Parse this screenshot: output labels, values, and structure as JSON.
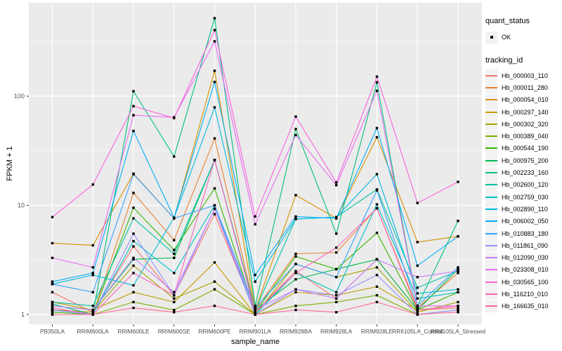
{
  "figure": {
    "background": "#FFFFFF"
  },
  "panel": {
    "background": "#EBEBEB",
    "grid_color": "#FFFFFF",
    "tick_color": "#333333",
    "tick_label_color": "#4D4D4D"
  },
  "axes": {
    "x": {
      "title": "sample_name",
      "categories": [
        "PB350LA",
        "RRIM600LA",
        "RRIM600LE",
        "RRIM600SE",
        "RRIM600PE",
        "RRIM901LA",
        "RRIM928BA",
        "RRIM928LA",
        "RRIM928LE",
        "RRII105LA_Control",
        "RRII105LA_Stressed"
      ]
    },
    "y": {
      "title": "FPKM + 1",
      "scale": "log10",
      "tick_labels": [
        "100",
        "10",
        "1"
      ],
      "tick_values": [
        100,
        10,
        1
      ]
    }
  },
  "legend": {
    "quant_status": {
      "title": "quant_status",
      "items": [
        {
          "label": "OK",
          "marker": "black-square-point"
        }
      ]
    },
    "tracking_id": {
      "title": "tracking_id"
    }
  },
  "chart_data": {
    "type": "line",
    "title": "",
    "xlabel": "sample_name",
    "ylabel": "FPKM + 1",
    "y_scale": "log10",
    "ylim": [
      1,
      700
    ],
    "y_major_ticks": [
      1,
      10,
      100
    ],
    "y_minor_ticks": [
      3.162,
      31.62,
      316.2
    ],
    "grid": true,
    "legend_position": "right",
    "point_color": "#000000",
    "categories": [
      "PB350LA",
      "RRIM600LA",
      "RRIM600LE",
      "RRIM600SE",
      "RRIM600PE",
      "RRIM901LA",
      "RRIM928BA",
      "RRIM928LA",
      "RRIM928LE",
      "RRII105LA_Control",
      "RRII105LA_Stressed"
    ],
    "series": [
      {
        "name": "Hb_000003_110",
        "color": "#F8766D",
        "values": [
          1.6,
          1.05,
          4.2,
          1.5,
          8.3,
          1.05,
          2.5,
          1.4,
          3.2,
          1.1,
          1.15
        ]
      },
      {
        "name": "Hb_000011_280",
        "color": "#EA8331",
        "values": [
          1.1,
          1.0,
          13,
          4.8,
          41,
          1.1,
          3.6,
          3.7,
          9.4,
          1.15,
          2.4
        ]
      },
      {
        "name": "Hb_000054_010",
        "color": "#D89000",
        "values": [
          4.5,
          4.3,
          19.5,
          7.6,
          171,
          1.1,
          12.4,
          7.6,
          42,
          4.6,
          5.2
        ]
      },
      {
        "name": "Hb_000297_140",
        "color": "#C09B00",
        "values": [
          1.3,
          1.1,
          1.6,
          1.3,
          3.0,
          1.0,
          1.6,
          1.5,
          1.8,
          1.1,
          1.2
        ]
      },
      {
        "name": "Hb_000302_320",
        "color": "#A3A500",
        "values": [
          1.1,
          1.05,
          2.8,
          1.4,
          2.0,
          1.0,
          2.9,
          2.2,
          2.7,
          1.05,
          1.3
        ]
      },
      {
        "name": "Hb_000389_040",
        "color": "#7CAE00",
        "values": [
          1.0,
          1.0,
          1.3,
          1.1,
          1.7,
          1.0,
          1.2,
          1.3,
          1.5,
          1.0,
          1.1
        ]
      },
      {
        "name": "Hb_000544_190",
        "color": "#39B600",
        "values": [
          1.05,
          1.0,
          9.5,
          3.9,
          14.3,
          1.05,
          3.4,
          2.6,
          5.6,
          1.1,
          1.6
        ]
      },
      {
        "name": "Hb_000975_200",
        "color": "#00BB4E",
        "values": [
          1.2,
          1.1,
          3.2,
          3.3,
          26,
          1.1,
          2.1,
          2.6,
          3.2,
          1.1,
          2.6
        ]
      },
      {
        "name": "Hb_002233_160",
        "color": "#00BF7D",
        "values": [
          1.25,
          1.0,
          111,
          28,
          518,
          1.2,
          50,
          5.5,
          134,
          1.2,
          7.2
        ]
      },
      {
        "name": "Hb_002600_120",
        "color": "#00C1A3",
        "values": [
          1.3,
          1.2,
          7.6,
          3.6,
          26,
          1.1,
          7.5,
          7.8,
          14,
          1.76,
          2.5
        ]
      },
      {
        "name": "Hb_002759_030",
        "color": "#00BFC4",
        "values": [
          1.1,
          1.0,
          4.7,
          2.4,
          10,
          1.0,
          2.4,
          1.6,
          10.2,
          1.4,
          1.6
        ]
      },
      {
        "name": "Hb_002890_110",
        "color": "#00BAE0",
        "values": [
          1.9,
          2.3,
          1.85,
          7.7,
          79,
          2.0,
          7.5,
          7.8,
          19.3,
          1.56,
          1.7
        ]
      },
      {
        "name": "Hb_006002_050",
        "color": "#00B0F6",
        "values": [
          2.0,
          2.4,
          48,
          7.7,
          135,
          2.3,
          7.9,
          7.6,
          51,
          2.8,
          5.2
        ]
      },
      {
        "name": "Hb_010883_180",
        "color": "#35A2FF",
        "values": [
          1.9,
          1.6,
          19.3,
          7.6,
          10,
          1.15,
          2.9,
          2.2,
          13.7,
          1.2,
          2.7
        ]
      },
      {
        "name": "Hb_011861_090",
        "color": "#9590FF",
        "values": [
          1.1,
          1.0,
          5.5,
          1.5,
          9.3,
          1.0,
          1.7,
          1.5,
          2.3,
          1.0,
          1.1
        ]
      },
      {
        "name": "Hb_012090_030",
        "color": "#C77CFF",
        "values": [
          1.2,
          1.1,
          3.3,
          1.6,
          9.3,
          1.1,
          1.7,
          1.4,
          3.2,
          2.2,
          2.5
        ]
      },
      {
        "name": "Hb_023308_010",
        "color": "#E76BF3",
        "values": [
          3.3,
          2.7,
          67,
          64,
          318,
          6.7,
          44,
          15.3,
          112,
          1.2,
          1.2
        ]
      },
      {
        "name": "Hb_030565_100",
        "color": "#FA62DB",
        "values": [
          7.8,
          15.5,
          81,
          63,
          403,
          7.9,
          65,
          16.2,
          151,
          10.5,
          16.4
        ]
      },
      {
        "name": "Hb_116210_010",
        "color": "#FF62BC",
        "values": [
          1.15,
          1.0,
          2.4,
          1.5,
          26,
          1.05,
          2.4,
          4.1,
          9.4,
          1.1,
          1.2
        ]
      },
      {
        "name": "Hb_166635_010",
        "color": "#FF6A98",
        "values": [
          1.0,
          1.0,
          1.15,
          1.05,
          1.2,
          1.0,
          1.1,
          1.05,
          1.3,
          1.0,
          1.05
        ]
      }
    ]
  }
}
